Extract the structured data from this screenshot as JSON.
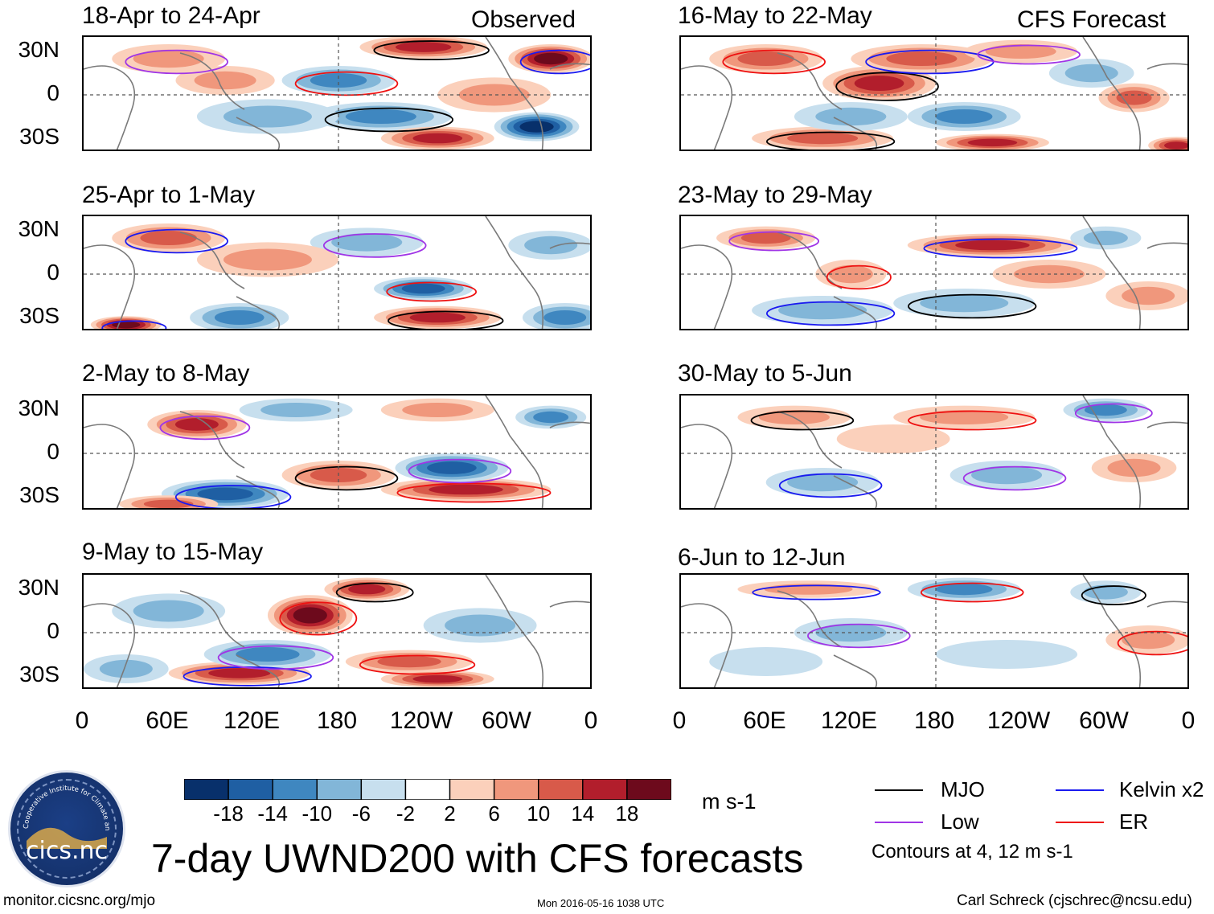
{
  "figure": {
    "main_title": "7-day UWND200 with CFS forecasts",
    "observed_label": "Observed",
    "forecast_label": "CFS Forecast",
    "units": "m s-1",
    "contour_note": "Contours at 4, 12 m s-1",
    "footer_left": "monitor.cicsnc.org/mjo",
    "footer_center": "Mon 2016-05-16 1038 UTC",
    "footer_right": "Carl Schreck (cjschrec@ncsu.edu)",
    "logo_text": "cics.nc",
    "logo_arc_text": "Cooperative Institute for Climate and Satellites"
  },
  "chart_data": {
    "type": "heatmap",
    "variable": "UWND200",
    "y_ticks": [
      "30N",
      "0",
      "30S"
    ],
    "y_values": [
      30,
      0,
      -30
    ],
    "ylim": [
      -40,
      40
    ],
    "x_ticks": [
      "0",
      "60E",
      "120E",
      "180",
      "120W",
      "60W",
      "0"
    ],
    "x_values": [
      0,
      60,
      120,
      180,
      240,
      300,
      360
    ],
    "xlim": [
      0,
      360
    ],
    "colorbar": {
      "ticks": [
        "-18",
        "-14",
        "-10",
        "-6",
        "-2",
        "2",
        "6",
        "10",
        "14",
        "18"
      ],
      "levels": [
        -18,
        -14,
        -10,
        -6,
        -2,
        2,
        6,
        10,
        14,
        18
      ],
      "colors": [
        "#08306b",
        "#1f5fa3",
        "#3f87c0",
        "#82b6d8",
        "#c7dfee",
        "#ffffff",
        "#fbd0bb",
        "#f0977c",
        "#d85a4a",
        "#b21e2c",
        "#6d0a1c"
      ]
    },
    "legend": [
      {
        "label": "MJO",
        "color": "#000000"
      },
      {
        "label": "Kelvin x2",
        "color": "#1a1af0"
      },
      {
        "label": "Low",
        "color": "#a035e6"
      },
      {
        "label": "ER",
        "color": "#ee1111"
      }
    ],
    "panels": [
      {
        "title": "18-Apr to 24-Apr",
        "source": "Observed",
        "column": 0,
        "row": 0,
        "anomalies": [
          {
            "lon": 240,
            "lat": 33,
            "value": 16,
            "w": 45,
            "h": 8
          },
          {
            "lon": 330,
            "lat": 25,
            "value": 18,
            "w": 30,
            "h": 10
          },
          {
            "lon": 60,
            "lat": 25,
            "value": 8,
            "w": 40,
            "h": 10
          },
          {
            "lon": 180,
            "lat": 10,
            "value": -10,
            "w": 40,
            "h": 10
          },
          {
            "lon": 210,
            "lat": -15,
            "value": -12,
            "w": 50,
            "h": 10
          },
          {
            "lon": 320,
            "lat": -22,
            "value": -18,
            "w": 30,
            "h": 10
          },
          {
            "lon": 250,
            "lat": -30,
            "value": 14,
            "w": 40,
            "h": 8
          },
          {
            "lon": 130,
            "lat": -15,
            "value": -8,
            "w": 50,
            "h": 12
          },
          {
            "lon": 290,
            "lat": 0,
            "value": 6,
            "w": 40,
            "h": 12
          },
          {
            "lon": 100,
            "lat": 10,
            "value": 6,
            "w": 35,
            "h": 10
          }
        ]
      },
      {
        "title": "25-Apr to 1-May",
        "source": "Observed",
        "column": 0,
        "row": 1,
        "anomalies": [
          {
            "lon": 60,
            "lat": 25,
            "value": 12,
            "w": 40,
            "h": 10
          },
          {
            "lon": 200,
            "lat": 22,
            "value": -8,
            "w": 40,
            "h": 10
          },
          {
            "lon": 240,
            "lat": -10,
            "value": -16,
            "w": 35,
            "h": 8
          },
          {
            "lon": 250,
            "lat": -30,
            "value": 16,
            "w": 45,
            "h": 8
          },
          {
            "lon": 30,
            "lat": -35,
            "value": 18,
            "w": 25,
            "h": 6
          },
          {
            "lon": 110,
            "lat": -30,
            "value": -12,
            "w": 35,
            "h": 10
          },
          {
            "lon": 340,
            "lat": -30,
            "value": -12,
            "w": 30,
            "h": 10
          },
          {
            "lon": 130,
            "lat": 10,
            "value": 6,
            "w": 50,
            "h": 12
          },
          {
            "lon": 330,
            "lat": 20,
            "value": -6,
            "w": 30,
            "h": 10
          }
        ]
      },
      {
        "title": "2-May to 8-May",
        "source": "Observed",
        "column": 0,
        "row": 2,
        "anomalies": [
          {
            "lon": 80,
            "lat": 20,
            "value": 16,
            "w": 35,
            "h": 10
          },
          {
            "lon": 270,
            "lat": -25,
            "value": 16,
            "w": 60,
            "h": 8
          },
          {
            "lon": 180,
            "lat": -15,
            "value": 10,
            "w": 40,
            "h": 10
          },
          {
            "lon": 100,
            "lat": -28,
            "value": -16,
            "w": 45,
            "h": 10
          },
          {
            "lon": 260,
            "lat": -10,
            "value": -14,
            "w": 40,
            "h": 10
          },
          {
            "lon": 330,
            "lat": 25,
            "value": -10,
            "w": 25,
            "h": 8
          },
          {
            "lon": 60,
            "lat": -35,
            "value": 12,
            "w": 35,
            "h": 6
          },
          {
            "lon": 250,
            "lat": 30,
            "value": 8,
            "w": 40,
            "h": 8
          },
          {
            "lon": 150,
            "lat": 30,
            "value": -8,
            "w": 40,
            "h": 8
          }
        ]
      },
      {
        "title": "9-May to 15-May",
        "source": "Observed",
        "column": 0,
        "row": 3,
        "anomalies": [
          {
            "lon": 160,
            "lat": 12,
            "value": 18,
            "w": 30,
            "h": 14
          },
          {
            "lon": 200,
            "lat": 30,
            "value": 14,
            "w": 30,
            "h": 8
          },
          {
            "lon": 110,
            "lat": -28,
            "value": 16,
            "w": 50,
            "h": 8
          },
          {
            "lon": 130,
            "lat": -15,
            "value": -12,
            "w": 45,
            "h": 10
          },
          {
            "lon": 230,
            "lat": -20,
            "value": 10,
            "w": 45,
            "h": 8
          },
          {
            "lon": 250,
            "lat": -32,
            "value": 14,
            "w": 40,
            "h": 6
          },
          {
            "lon": 60,
            "lat": 15,
            "value": -6,
            "w": 40,
            "h": 12
          },
          {
            "lon": 280,
            "lat": 5,
            "value": -6,
            "w": 40,
            "h": 12
          },
          {
            "lon": 30,
            "lat": -25,
            "value": -8,
            "w": 30,
            "h": 10
          }
        ]
      },
      {
        "title": "16-May to 22-May",
        "source": "CFS Forecast",
        "column": 1,
        "row": 0,
        "anomalies": [
          {
            "lon": 140,
            "lat": 8,
            "value": 16,
            "w": 40,
            "h": 12
          },
          {
            "lon": 170,
            "lat": 25,
            "value": 10,
            "w": 50,
            "h": 10
          },
          {
            "lon": 240,
            "lat": 30,
            "value": 8,
            "w": 40,
            "h": 8
          },
          {
            "lon": 60,
            "lat": 25,
            "value": 10,
            "w": 40,
            "h": 10
          },
          {
            "lon": 100,
            "lat": -30,
            "value": 12,
            "w": 50,
            "h": 8
          },
          {
            "lon": 220,
            "lat": -33,
            "value": 16,
            "w": 40,
            "h": 6
          },
          {
            "lon": 350,
            "lat": -35,
            "value": 14,
            "w": 20,
            "h": 6
          },
          {
            "lon": 320,
            "lat": -2,
            "value": 10,
            "w": 25,
            "h": 10
          },
          {
            "lon": 200,
            "lat": -15,
            "value": -10,
            "w": 40,
            "h": 10
          },
          {
            "lon": 120,
            "lat": -15,
            "value": -6,
            "w": 40,
            "h": 10
          },
          {
            "lon": 290,
            "lat": 15,
            "value": -6,
            "w": 30,
            "h": 10
          }
        ]
      },
      {
        "title": "23-May to 29-May",
        "source": "CFS Forecast",
        "column": 1,
        "row": 1,
        "anomalies": [
          {
            "lon": 220,
            "lat": 20,
            "value": 14,
            "w": 60,
            "h": 8
          },
          {
            "lon": 60,
            "lat": 25,
            "value": 10,
            "w": 35,
            "h": 8
          },
          {
            "lon": 120,
            "lat": 0,
            "value": 8,
            "w": 25,
            "h": 10
          },
          {
            "lon": 200,
            "lat": -20,
            "value": -8,
            "w": 50,
            "h": 10
          },
          {
            "lon": 100,
            "lat": -25,
            "value": -6,
            "w": 50,
            "h": 10
          },
          {
            "lon": 300,
            "lat": 25,
            "value": -8,
            "w": 25,
            "h": 8
          },
          {
            "lon": 330,
            "lat": -15,
            "value": 6,
            "w": 30,
            "h": 10
          },
          {
            "lon": 260,
            "lat": 0,
            "value": 6,
            "w": 40,
            "h": 10
          }
        ]
      },
      {
        "title": "30-May to 5-Jun",
        "source": "CFS Forecast",
        "column": 1,
        "row": 2,
        "anomalies": [
          {
            "lon": 300,
            "lat": 30,
            "value": -10,
            "w": 30,
            "h": 8
          },
          {
            "lon": 200,
            "lat": 25,
            "value": 6,
            "w": 50,
            "h": 8
          },
          {
            "lon": 80,
            "lat": 25,
            "value": 6,
            "w": 40,
            "h": 8
          },
          {
            "lon": 100,
            "lat": -20,
            "value": -6,
            "w": 40,
            "h": 10
          },
          {
            "lon": 230,
            "lat": -15,
            "value": -6,
            "w": 40,
            "h": 10
          },
          {
            "lon": 320,
            "lat": -10,
            "value": 6,
            "w": 30,
            "h": 10
          },
          {
            "lon": 150,
            "lat": 10,
            "value": 4,
            "w": 40,
            "h": 10
          }
        ]
      },
      {
        "title": "6-Jun to 12-Jun",
        "source": "CFS Forecast",
        "column": 1,
        "row": 3,
        "anomalies": [
          {
            "lon": 200,
            "lat": 30,
            "value": -10,
            "w": 40,
            "h": 8
          },
          {
            "lon": 300,
            "lat": 28,
            "value": -8,
            "w": 25,
            "h": 8
          },
          {
            "lon": 90,
            "lat": 30,
            "value": 6,
            "w": 50,
            "h": 6
          },
          {
            "lon": 120,
            "lat": 0,
            "value": -6,
            "w": 40,
            "h": 10
          },
          {
            "lon": 330,
            "lat": -5,
            "value": 6,
            "w": 30,
            "h": 10
          },
          {
            "lon": 60,
            "lat": -20,
            "value": -4,
            "w": 40,
            "h": 10
          },
          {
            "lon": 230,
            "lat": -15,
            "value": -4,
            "w": 50,
            "h": 10
          }
        ]
      }
    ]
  }
}
